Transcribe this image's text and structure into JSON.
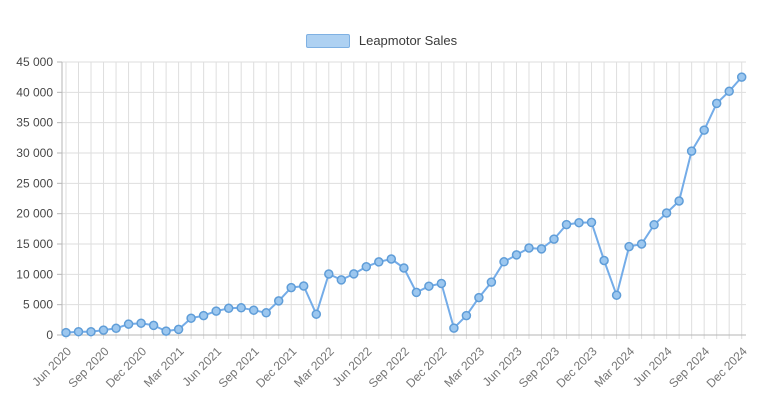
{
  "legend": {
    "label": "Leapmotor Sales"
  },
  "colors": {
    "line": "#74ace8",
    "marker_fill": "#9cc7ef",
    "marker_stroke": "#5f9dd8",
    "grid": "#dedede",
    "axis": "#b5b5b5",
    "legend_fill": "#aed1f2",
    "legend_border": "#7fb1e3",
    "legend_text": "#3a3a3a",
    "y_label": "#474747",
    "x_label": "#757575"
  },
  "chart_data": {
    "type": "line",
    "title": "",
    "xlabel": "",
    "ylabel": "",
    "ylim": [
      0,
      45000
    ],
    "ytick_step": 5000,
    "ytick_labels": [
      "0",
      "5 000",
      "10 000",
      "15 000",
      "20 000",
      "25 000",
      "30 000",
      "35 000",
      "40 000",
      "45 000"
    ],
    "grid": true,
    "legend_position": "top-center",
    "x_label_every": 3,
    "x_tick_labels": [
      "Jun 2020",
      "Sep 2020",
      "Dec 2020",
      "Mar 2021",
      "Jun 2021",
      "Sep 2021",
      "Dec 2021",
      "Mar 2022",
      "Jun 2022",
      "Sep 2022",
      "Dec 2022",
      "Mar 2023",
      "Jun 2023",
      "Sep 2023",
      "Dec 2023",
      "Mar 2024",
      "Jun 2024",
      "Sep 2024",
      "Dec 2024"
    ],
    "x": [
      "Jun 2020",
      "Jul 2020",
      "Aug 2020",
      "Sep 2020",
      "Oct 2020",
      "Nov 2020",
      "Dec 2020",
      "Jan 2021",
      "Feb 2021",
      "Mar 2021",
      "Apr 2021",
      "May 2021",
      "Jun 2021",
      "Jul 2021",
      "Aug 2021",
      "Sep 2021",
      "Oct 2021",
      "Nov 2021",
      "Dec 2021",
      "Jan 2022",
      "Feb 2022",
      "Mar 2022",
      "Apr 2022",
      "May 2022",
      "Jun 2022",
      "Jul 2022",
      "Aug 2022",
      "Sep 2022",
      "Oct 2022",
      "Nov 2022",
      "Dec 2022",
      "Jan 2023",
      "Feb 2023",
      "Mar 2023",
      "Apr 2023",
      "May 2023",
      "Jun 2023",
      "Jul 2023",
      "Aug 2023",
      "Sep 2023",
      "Oct 2023",
      "Nov 2023",
      "Dec 2023",
      "Jan 2024",
      "Feb 2024",
      "Mar 2024",
      "Apr 2024",
      "May 2024",
      "Jun 2024",
      "Jul 2024",
      "Aug 2024",
      "Sep 2024",
      "Oct 2024",
      "Nov 2024",
      "Dec 2024"
    ],
    "series": [
      {
        "name": "Leapmotor Sales",
        "values": [
          400,
          550,
          550,
          800,
          1100,
          1800,
          1950,
          1575,
          649,
          915,
          2770,
          3195,
          3941,
          4404,
          4488,
          4095,
          3654,
          5628,
          7807,
          8085,
          3435,
          10059,
          9087,
          10069,
          11259,
          12044,
          12525,
          11039,
          7026,
          8047,
          8493,
          1139,
          3198,
          6172,
          8726,
          12058,
          13209,
          14335,
          14190,
          15800,
          18202,
          18508,
          18568,
          12277,
          6566,
          14567,
          15005,
          18165,
          20116,
          22093,
          30305,
          33767,
          38177,
          40169,
          42517
        ]
      }
    ]
  }
}
